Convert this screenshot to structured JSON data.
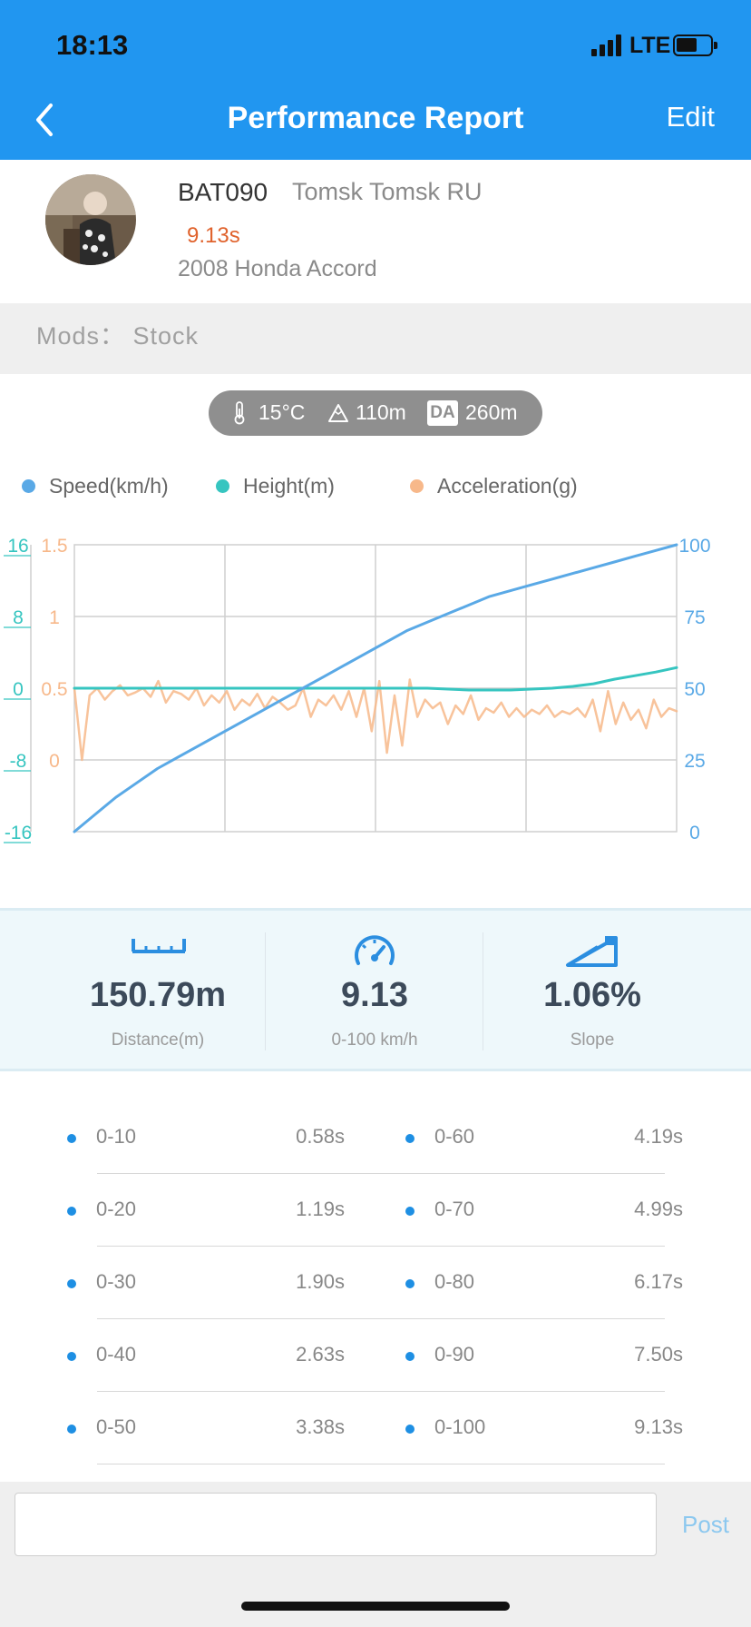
{
  "status_bar": {
    "time": "18:13",
    "network": "LTE"
  },
  "nav": {
    "title": "Performance Report",
    "edit_label": "Edit"
  },
  "profile": {
    "username": "BAT090",
    "location": "Tomsk Tomsk RU",
    "best_time": "9.13s",
    "car": "2008 Honda Accord",
    "mods": "Mods： Stock"
  },
  "conditions": {
    "temperature": "15°C",
    "altitude": "110m",
    "da_label": "DA",
    "density_altitude": "260m"
  },
  "legend": [
    {
      "label": "Speed(km/h)",
      "color": "#5aa9e6"
    },
    {
      "label": "Height(m)",
      "color": "#36c5c0"
    },
    {
      "label": "Acceleration(g)",
      "color": "#f7b88a"
    }
  ],
  "chart_data": {
    "type": "line",
    "grid": true,
    "x": {
      "divisions": 4
    },
    "axes": {
      "height": {
        "ticks": [
          "16",
          "8",
          "0",
          "-8",
          "-16"
        ],
        "ylim": [
          -16,
          16
        ],
        "color": "#36c5c0"
      },
      "acceleration": {
        "ticks": [
          "1.5",
          "1",
          "0.5",
          "0"
        ],
        "ylim": [
          -0.5,
          1.5
        ],
        "color": "#f7b88a"
      },
      "speed": {
        "ticks": [
          "100",
          "75",
          "50",
          "25",
          "0"
        ],
        "ylim": [
          0,
          100
        ],
        "color": "#5aa9e6"
      }
    },
    "series": [
      {
        "name": "Speed(km/h)",
        "color": "#5aa9e6",
        "values": [
          0,
          6,
          12,
          17,
          22,
          26,
          30,
          34,
          38,
          42,
          46,
          50,
          54,
          58,
          62,
          66,
          70,
          73,
          76,
          79,
          82,
          84,
          86,
          88,
          90,
          92,
          94,
          96,
          98,
          100
        ]
      },
      {
        "name": "Height(m)",
        "color": "#36c5c0",
        "values": [
          0,
          0,
          0,
          0,
          0,
          0,
          0,
          0,
          0,
          0,
          0,
          0,
          0,
          0,
          0,
          0,
          0,
          0,
          -0.1,
          -0.2,
          -0.2,
          -0.2,
          -0.1,
          0,
          0.2,
          0.5,
          1,
          1.4,
          1.8,
          2.3
        ]
      },
      {
        "name": "Acceleration(g)",
        "color": "#f7b88a",
        "values": [
          0.5,
          0,
          0.45,
          0.5,
          0.42,
          0.48,
          0.52,
          0.45,
          0.47,
          0.5,
          0.44,
          0.55,
          0.4,
          0.48,
          0.46,
          0.42,
          0.5,
          0.38,
          0.45,
          0.4,
          0.48,
          0.35,
          0.42,
          0.38,
          0.46,
          0.36,
          0.44,
          0.4,
          0.35,
          0.38,
          0.5,
          0.3,
          0.42,
          0.38,
          0.45,
          0.35,
          0.48,
          0.3,
          0.5,
          0.2,
          0.55,
          0.05,
          0.45,
          0.1,
          0.56,
          0.3,
          0.42,
          0.36,
          0.4,
          0.25,
          0.38,
          0.32,
          0.45,
          0.28,
          0.36,
          0.33,
          0.4,
          0.3,
          0.36,
          0.3,
          0.35,
          0.32,
          0.38,
          0.3,
          0.34,
          0.32,
          0.36,
          0.3,
          0.42,
          0.2,
          0.48,
          0.25,
          0.4,
          0.28,
          0.35,
          0.22,
          0.42,
          0.3,
          0.36,
          0.34
        ]
      }
    ]
  },
  "stats": [
    {
      "icon": "ruler-icon",
      "value": "150.79m",
      "label": "Distance(m)"
    },
    {
      "icon": "speedometer-icon",
      "value": "9.13",
      "label": "0-100 km/h"
    },
    {
      "icon": "slope-icon",
      "value": "1.06%",
      "label": "Slope"
    }
  ],
  "splits": [
    {
      "name": "0-10",
      "time": "0.58s"
    },
    {
      "name": "0-20",
      "time": "1.19s"
    },
    {
      "name": "0-30",
      "time": "1.90s"
    },
    {
      "name": "0-40",
      "time": "2.63s"
    },
    {
      "name": "0-50",
      "time": "3.38s"
    },
    {
      "name": "0-60",
      "time": "4.19s"
    },
    {
      "name": "0-70",
      "time": "4.99s"
    },
    {
      "name": "0-80",
      "time": "6.17s"
    },
    {
      "name": "0-90",
      "time": "7.50s"
    },
    {
      "name": "0-100",
      "time": "9.13s"
    }
  ],
  "comment": {
    "value": "",
    "post_label": "Post"
  },
  "colors": {
    "accent": "#2196f0",
    "speed": "#5aa9e6",
    "height": "#36c5c0",
    "acceleration": "#f7b88a",
    "best_time": "#e0622c"
  }
}
